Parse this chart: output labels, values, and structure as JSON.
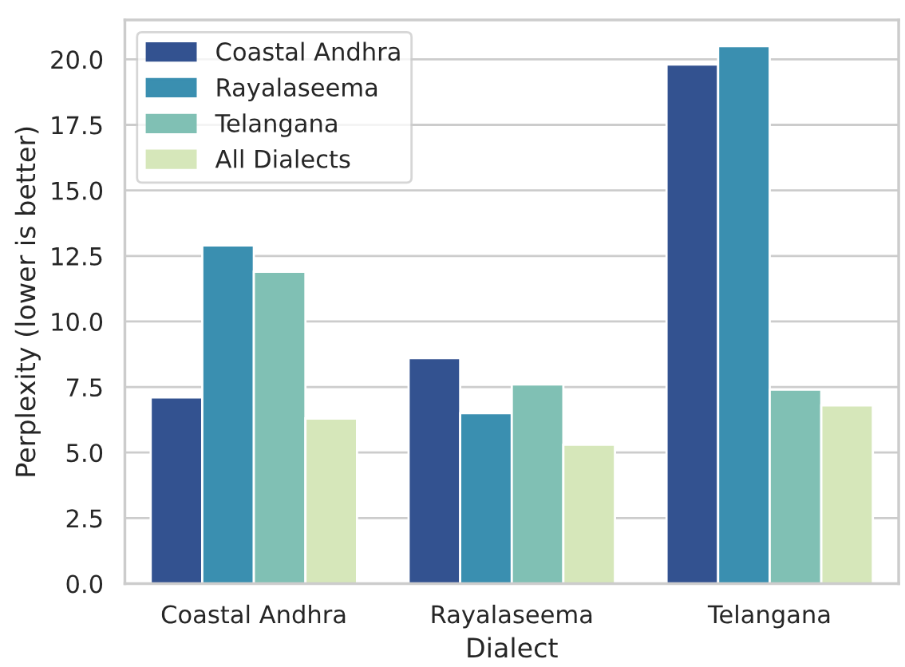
{
  "chart_data": {
    "type": "bar",
    "xlabel": "Dialect",
    "ylabel": "Perplexity (lower is better)",
    "categories": [
      "Coastal Andhra",
      "Rayalaseema",
      "Telangana"
    ],
    "series": [
      {
        "name": "Coastal Andhra",
        "color": "#335290",
        "values": [
          7.1,
          8.6,
          19.8
        ]
      },
      {
        "name": "Rayalaseema",
        "color": "#3a8fb0",
        "values": [
          12.9,
          6.5,
          20.5
        ]
      },
      {
        "name": "Telangana",
        "color": "#80c0b4",
        "values": [
          11.9,
          7.6,
          7.4
        ]
      },
      {
        "name": "All Dialects",
        "color": "#d6e7ba",
        "values": [
          6.3,
          5.3,
          6.8
        ]
      }
    ],
    "ylim": [
      0,
      21.5
    ],
    "yticks": [
      {
        "value": 0,
        "label": "0.0"
      },
      {
        "value": 2.5,
        "label": "2.5"
      },
      {
        "value": 5,
        "label": "5.0"
      },
      {
        "value": 7.5,
        "label": "7.5"
      },
      {
        "value": 10,
        "label": "10.0"
      },
      {
        "value": 12.5,
        "label": "12.5"
      },
      {
        "value": 15,
        "label": "15.0"
      },
      {
        "value": 17.5,
        "label": "17.5"
      },
      {
        "value": 20,
        "label": "20.0"
      }
    ],
    "grid": "y",
    "legend": "top left"
  }
}
